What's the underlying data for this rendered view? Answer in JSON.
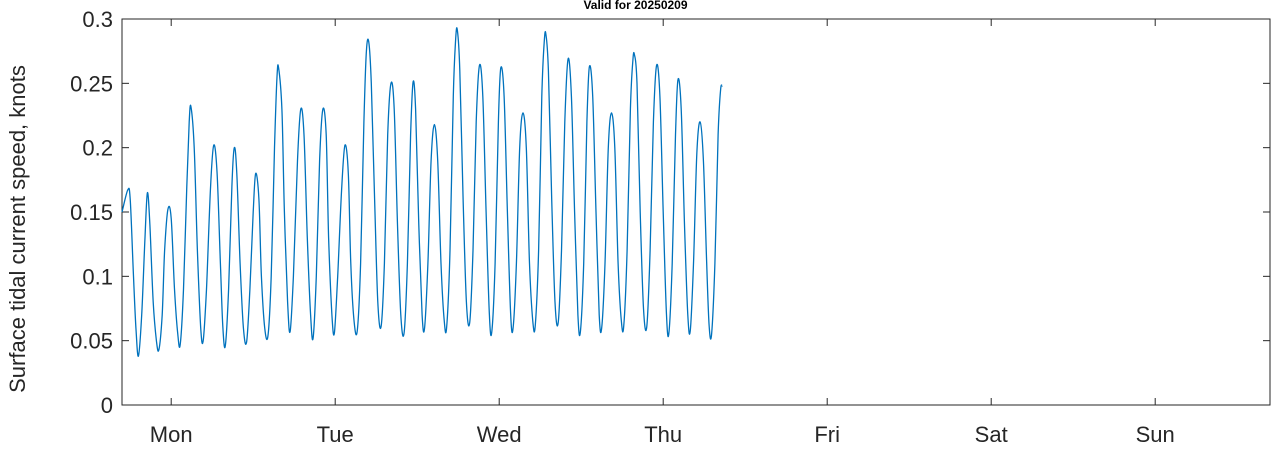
{
  "chart_data": {
    "type": "line",
    "title": "Valid for 20250209",
    "ylabel": "Surface tidal current speed, knots",
    "xlabel": "",
    "ylim": [
      0,
      0.3
    ],
    "xlim": [
      0.7,
      7.7
    ],
    "yticks": [
      0,
      0.05,
      0.1,
      0.15,
      0.2,
      0.25,
      0.3
    ],
    "ytick_labels": [
      "0",
      "0.05",
      "0.1",
      "0.15",
      "0.2",
      "0.25",
      "0.3"
    ],
    "xticks": [
      1,
      2,
      3,
      4,
      5,
      6,
      7
    ],
    "xtick_labels": [
      "Mon",
      "Tue",
      "Wed",
      "Thu",
      "Fri",
      "Sat",
      "Sun"
    ],
    "line_color": "#0072BD",
    "grid": false,
    "series": [
      {
        "values": [
          [
            0.7,
            0.15
          ],
          [
            0.735,
            0.167
          ],
          [
            0.75,
            0.16
          ],
          [
            0.77,
            0.1
          ],
          [
            0.785,
            0.06
          ],
          [
            0.8,
            0.038
          ],
          [
            0.82,
            0.07
          ],
          [
            0.84,
            0.13
          ],
          [
            0.855,
            0.165
          ],
          [
            0.87,
            0.14
          ],
          [
            0.89,
            0.08
          ],
          [
            0.91,
            0.05
          ],
          [
            0.925,
            0.043
          ],
          [
            0.945,
            0.07
          ],
          [
            0.96,
            0.12
          ],
          [
            0.98,
            0.152
          ],
          [
            1.0,
            0.145
          ],
          [
            1.02,
            0.09
          ],
          [
            1.04,
            0.055
          ],
          [
            1.055,
            0.047
          ],
          [
            1.075,
            0.09
          ],
          [
            1.095,
            0.17
          ],
          [
            1.11,
            0.22
          ],
          [
            1.12,
            0.232
          ],
          [
            1.14,
            0.2
          ],
          [
            1.16,
            0.12
          ],
          [
            1.18,
            0.06
          ],
          [
            1.195,
            0.05
          ],
          [
            1.215,
            0.09
          ],
          [
            1.24,
            0.17
          ],
          [
            1.26,
            0.202
          ],
          [
            1.28,
            0.18
          ],
          [
            1.3,
            0.11
          ],
          [
            1.315,
            0.06
          ],
          [
            1.33,
            0.046
          ],
          [
            1.35,
            0.09
          ],
          [
            1.37,
            0.17
          ],
          [
            1.385,
            0.2
          ],
          [
            1.4,
            0.18
          ],
          [
            1.42,
            0.11
          ],
          [
            1.44,
            0.06
          ],
          [
            1.46,
            0.049
          ],
          [
            1.48,
            0.09
          ],
          [
            1.5,
            0.15
          ],
          [
            1.515,
            0.18
          ],
          [
            1.535,
            0.16
          ],
          [
            1.55,
            0.1
          ],
          [
            1.57,
            0.06
          ],
          [
            1.59,
            0.054
          ],
          [
            1.61,
            0.1
          ],
          [
            1.63,
            0.2
          ],
          [
            1.645,
            0.255
          ],
          [
            1.655,
            0.262
          ],
          [
            1.675,
            0.23
          ],
          [
            1.69,
            0.15
          ],
          [
            1.71,
            0.08
          ],
          [
            1.725,
            0.057
          ],
          [
            1.745,
            0.1
          ],
          [
            1.77,
            0.19
          ],
          [
            1.79,
            0.23
          ],
          [
            1.81,
            0.21
          ],
          [
            1.83,
            0.13
          ],
          [
            1.85,
            0.07
          ],
          [
            1.865,
            0.052
          ],
          [
            1.885,
            0.1
          ],
          [
            1.905,
            0.19
          ],
          [
            1.925,
            0.23
          ],
          [
            1.945,
            0.21
          ],
          [
            1.96,
            0.13
          ],
          [
            1.98,
            0.07
          ],
          [
            1.995,
            0.056
          ],
          [
            2.015,
            0.1
          ],
          [
            2.04,
            0.17
          ],
          [
            2.06,
            0.202
          ],
          [
            2.08,
            0.18
          ],
          [
            2.095,
            0.11
          ],
          [
            2.115,
            0.065
          ],
          [
            2.135,
            0.058
          ],
          [
            2.155,
            0.11
          ],
          [
            2.175,
            0.22
          ],
          [
            2.19,
            0.275
          ],
          [
            2.205,
            0.282
          ],
          [
            2.22,
            0.25
          ],
          [
            2.24,
            0.16
          ],
          [
            2.26,
            0.08
          ],
          [
            2.28,
            0.061
          ],
          [
            2.3,
            0.11
          ],
          [
            2.32,
            0.21
          ],
          [
            2.34,
            0.25
          ],
          [
            2.36,
            0.23
          ],
          [
            2.38,
            0.14
          ],
          [
            2.4,
            0.07
          ],
          [
            2.42,
            0.056
          ],
          [
            2.44,
            0.11
          ],
          [
            2.46,
            0.21
          ],
          [
            2.475,
            0.251
          ],
          [
            2.49,
            0.23
          ],
          [
            2.51,
            0.14
          ],
          [
            2.53,
            0.07
          ],
          [
            2.545,
            0.06
          ],
          [
            2.565,
            0.11
          ],
          [
            2.585,
            0.19
          ],
          [
            2.605,
            0.218
          ],
          [
            2.625,
            0.19
          ],
          [
            2.645,
            0.11
          ],
          [
            2.665,
            0.065
          ],
          [
            2.68,
            0.061
          ],
          [
            2.7,
            0.12
          ],
          [
            2.72,
            0.24
          ],
          [
            2.735,
            0.285
          ],
          [
            2.745,
            0.291
          ],
          [
            2.76,
            0.26
          ],
          [
            2.78,
            0.16
          ],
          [
            2.8,
            0.08
          ],
          [
            2.82,
            0.064
          ],
          [
            2.84,
            0.12
          ],
          [
            2.86,
            0.22
          ],
          [
            2.88,
            0.264
          ],
          [
            2.9,
            0.24
          ],
          [
            2.92,
            0.15
          ],
          [
            2.94,
            0.07
          ],
          [
            2.955,
            0.057
          ],
          [
            2.975,
            0.11
          ],
          [
            2.995,
            0.22
          ],
          [
            3.01,
            0.262
          ],
          [
            3.03,
            0.24
          ],
          [
            3.05,
            0.15
          ],
          [
            3.07,
            0.07
          ],
          [
            3.085,
            0.06
          ],
          [
            3.105,
            0.11
          ],
          [
            3.125,
            0.2
          ],
          [
            3.145,
            0.227
          ],
          [
            3.165,
            0.2
          ],
          [
            3.185,
            0.11
          ],
          [
            3.205,
            0.065
          ],
          [
            3.22,
            0.062
          ],
          [
            3.24,
            0.12
          ],
          [
            3.26,
            0.24
          ],
          [
            3.275,
            0.283
          ],
          [
            3.285,
            0.288
          ],
          [
            3.3,
            0.26
          ],
          [
            3.32,
            0.16
          ],
          [
            3.34,
            0.08
          ],
          [
            3.36,
            0.064
          ],
          [
            3.38,
            0.12
          ],
          [
            3.4,
            0.22
          ],
          [
            3.42,
            0.269
          ],
          [
            3.44,
            0.24
          ],
          [
            3.46,
            0.15
          ],
          [
            3.48,
            0.07
          ],
          [
            3.495,
            0.057
          ],
          [
            3.515,
            0.11
          ],
          [
            3.535,
            0.22
          ],
          [
            3.55,
            0.263
          ],
          [
            3.57,
            0.24
          ],
          [
            3.59,
            0.15
          ],
          [
            3.61,
            0.07
          ],
          [
            3.625,
            0.06
          ],
          [
            3.645,
            0.11
          ],
          [
            3.665,
            0.2
          ],
          [
            3.685,
            0.227
          ],
          [
            3.705,
            0.2
          ],
          [
            3.725,
            0.11
          ],
          [
            3.745,
            0.065
          ],
          [
            3.76,
            0.062
          ],
          [
            3.78,
            0.12
          ],
          [
            3.8,
            0.23
          ],
          [
            3.815,
            0.268
          ],
          [
            3.825,
            0.272
          ],
          [
            3.84,
            0.25
          ],
          [
            3.86,
            0.15
          ],
          [
            3.88,
            0.075
          ],
          [
            3.9,
            0.061
          ],
          [
            3.92,
            0.12
          ],
          [
            3.94,
            0.22
          ],
          [
            3.96,
            0.264
          ],
          [
            3.98,
            0.24
          ],
          [
            4.0,
            0.15
          ],
          [
            4.02,
            0.07
          ],
          [
            4.035,
            0.056
          ],
          [
            4.055,
            0.11
          ],
          [
            4.075,
            0.21
          ],
          [
            4.09,
            0.253
          ],
          [
            4.11,
            0.23
          ],
          [
            4.13,
            0.14
          ],
          [
            4.15,
            0.07
          ],
          [
            4.165,
            0.058
          ],
          [
            4.185,
            0.11
          ],
          [
            4.205,
            0.195
          ],
          [
            4.225,
            0.22
          ],
          [
            4.245,
            0.19
          ],
          [
            4.265,
            0.11
          ],
          [
            4.28,
            0.062
          ],
          [
            4.295,
            0.055
          ],
          [
            4.315,
            0.11
          ],
          [
            4.335,
            0.21
          ],
          [
            4.35,
            0.245
          ],
          [
            4.36,
            0.248
          ]
        ]
      }
    ]
  }
}
